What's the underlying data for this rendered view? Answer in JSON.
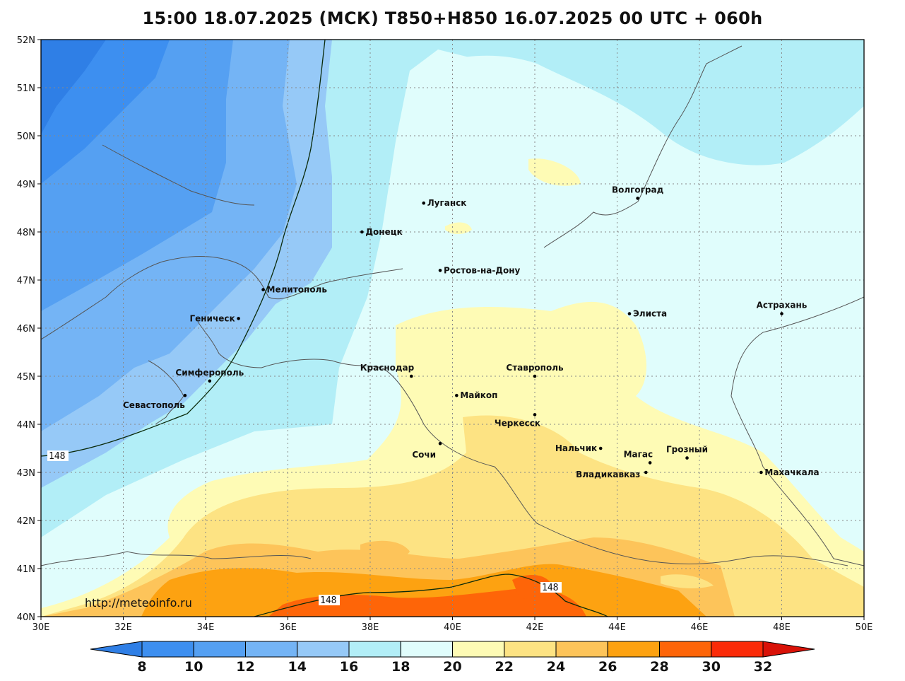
{
  "title": "15:00 18.07.2025 (МСК) T850+H850 16.07.2025 00 UTC + 060h",
  "source_url": "http://meteoinfo.ru",
  "map": {
    "lon_range": [
      30,
      50
    ],
    "lat_range": [
      40,
      52
    ],
    "lon_ticks": [
      "30E",
      "32E",
      "34E",
      "36E",
      "38E",
      "40E",
      "42E",
      "44E",
      "46E",
      "48E",
      "50E"
    ],
    "lat_ticks": [
      "40N",
      "41N",
      "42N",
      "43N",
      "44N",
      "45N",
      "46N",
      "47N",
      "48N",
      "49N",
      "50N",
      "51N",
      "52N"
    ],
    "grid": true
  },
  "cities": [
    {
      "name": "Волгоград",
      "lon": 44.5,
      "lat": 48.7
    },
    {
      "name": "Луганск",
      "lon": 39.3,
      "lat": 48.6
    },
    {
      "name": "Донецк",
      "lon": 37.8,
      "lat": 48.0
    },
    {
      "name": "Ростов-на-Дону",
      "lon": 39.7,
      "lat": 47.2
    },
    {
      "name": "Мелитополь",
      "lon": 35.4,
      "lat": 46.8
    },
    {
      "name": "Элиста",
      "lon": 44.3,
      "lat": 46.3
    },
    {
      "name": "Астрахань",
      "lon": 48.0,
      "lat": 46.3
    },
    {
      "name": "Геническ",
      "lon": 34.8,
      "lat": 46.2
    },
    {
      "name": "Симферополь",
      "lon": 34.1,
      "lat": 44.9
    },
    {
      "name": "Краснодар",
      "lon": 39.0,
      "lat": 45.0
    },
    {
      "name": "Ставрополь",
      "lon": 42.0,
      "lat": 45.0
    },
    {
      "name": "Майкоп",
      "lon": 40.1,
      "lat": 44.6
    },
    {
      "name": "Севастополь",
      "lon": 33.5,
      "lat": 44.6
    },
    {
      "name": "Черкесск",
      "lon": 42.0,
      "lat": 44.2
    },
    {
      "name": "Сочи",
      "lon": 39.7,
      "lat": 43.6
    },
    {
      "name": "Нальчик",
      "lon": 43.6,
      "lat": 43.5
    },
    {
      "name": "Грозный",
      "lon": 45.7,
      "lat": 43.3
    },
    {
      "name": "Магас",
      "lon": 44.8,
      "lat": 43.2
    },
    {
      "name": "Владикавказ",
      "lon": 44.7,
      "lat": 43.0
    },
    {
      "name": "Махачкала",
      "lon": 47.5,
      "lat": 43.0
    }
  ],
  "contour_labels": [
    "148",
    "148",
    "148"
  ],
  "colorbar": {
    "labels": [
      "8",
      "10",
      "12",
      "14",
      "16",
      "18",
      "20",
      "22",
      "24",
      "26",
      "28",
      "30",
      "32"
    ],
    "colors": [
      "#2f7fe6",
      "#3d8ff0",
      "#55a0f2",
      "#74b4f5",
      "#96c9f7",
      "#b2eef7",
      "#e0fdfc",
      "#fefbb5",
      "#fde383",
      "#fdc45a",
      "#fda211",
      "#fe6508",
      "#fb2b08",
      "#d91208"
    ]
  }
}
